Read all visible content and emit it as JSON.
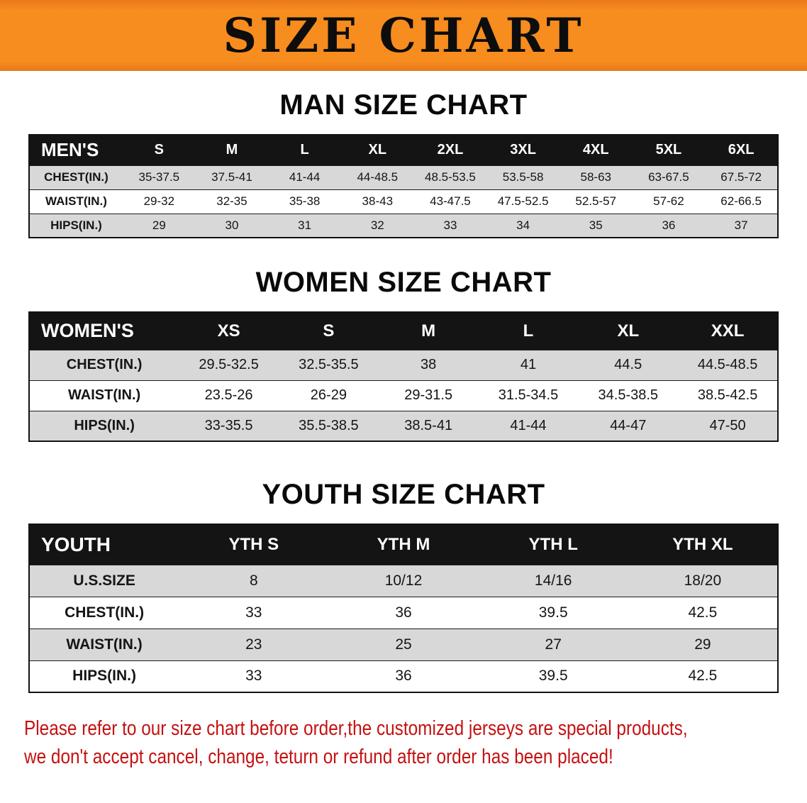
{
  "banner": {
    "title": "SIZE CHART"
  },
  "sections": [
    {
      "heading": "MAN SIZE CHART",
      "table": {
        "header": [
          "MEN'S",
          "S",
          "M",
          "L",
          "XL",
          "2XL",
          "3XL",
          "4XL",
          "5XL",
          "6XL"
        ],
        "rows": [
          [
            "CHEST(IN.)",
            "35-37.5",
            "37.5-41",
            "41-44",
            "44-48.5",
            "48.5-53.5",
            "53.5-58",
            "58-63",
            "63-67.5",
            "67.5-72"
          ],
          [
            "WAIST(IN.)",
            "29-32",
            "32-35",
            "35-38",
            "38-43",
            "43-47.5",
            "47.5-52.5",
            "52.5-57",
            "57-62",
            "62-66.5"
          ],
          [
            "HIPS(IN.)",
            "29",
            "30",
            "31",
            "32",
            "33",
            "34",
            "35",
            "36",
            "37"
          ]
        ]
      }
    },
    {
      "heading": "WOMEN SIZE CHART",
      "table": {
        "header": [
          "WOMEN'S",
          "XS",
          "S",
          "M",
          "L",
          "XL",
          "XXL"
        ],
        "rows": [
          [
            "CHEST(IN.)",
            "29.5-32.5",
            "32.5-35.5",
            "38",
            "41",
            "44.5",
            "44.5-48.5"
          ],
          [
            "WAIST(IN.)",
            "23.5-26",
            "26-29",
            "29-31.5",
            "31.5-34.5",
            "34.5-38.5",
            "38.5-42.5"
          ],
          [
            "HIPS(IN.)",
            "33-35.5",
            "35.5-38.5",
            "38.5-41",
            "41-44",
            "44-47",
            "47-50"
          ]
        ]
      }
    },
    {
      "heading": "YOUTH SIZE CHART",
      "table": {
        "header": [
          "YOUTH",
          "YTH S",
          "YTH M",
          "YTH L",
          "YTH XL"
        ],
        "rows": [
          [
            "U.S.SIZE",
            "8",
            "10/12",
            "14/16",
            "18/20"
          ],
          [
            "CHEST(IN.)",
            "33",
            "36",
            "39.5",
            "42.5"
          ],
          [
            "WAIST(IN.)",
            "23",
            "25",
            "27",
            "29"
          ],
          [
            "HIPS(IN.)",
            "33",
            "36",
            "39.5",
            "42.5"
          ]
        ]
      }
    }
  ],
  "footer": {
    "line1": "Please refer to our size chart before order,the customized jerseys are special products,",
    "line2": "we don't accept cancel, change, teturn or refund after order has been placed!"
  },
  "colors": {
    "banner_bg": "#f78c1f",
    "heading_text": "#0a0a0a",
    "header_row_bg": "#141414",
    "header_row_text": "#ffffff",
    "shaded_row_bg": "#d8d8d8",
    "notice_text": "#c51111"
  }
}
